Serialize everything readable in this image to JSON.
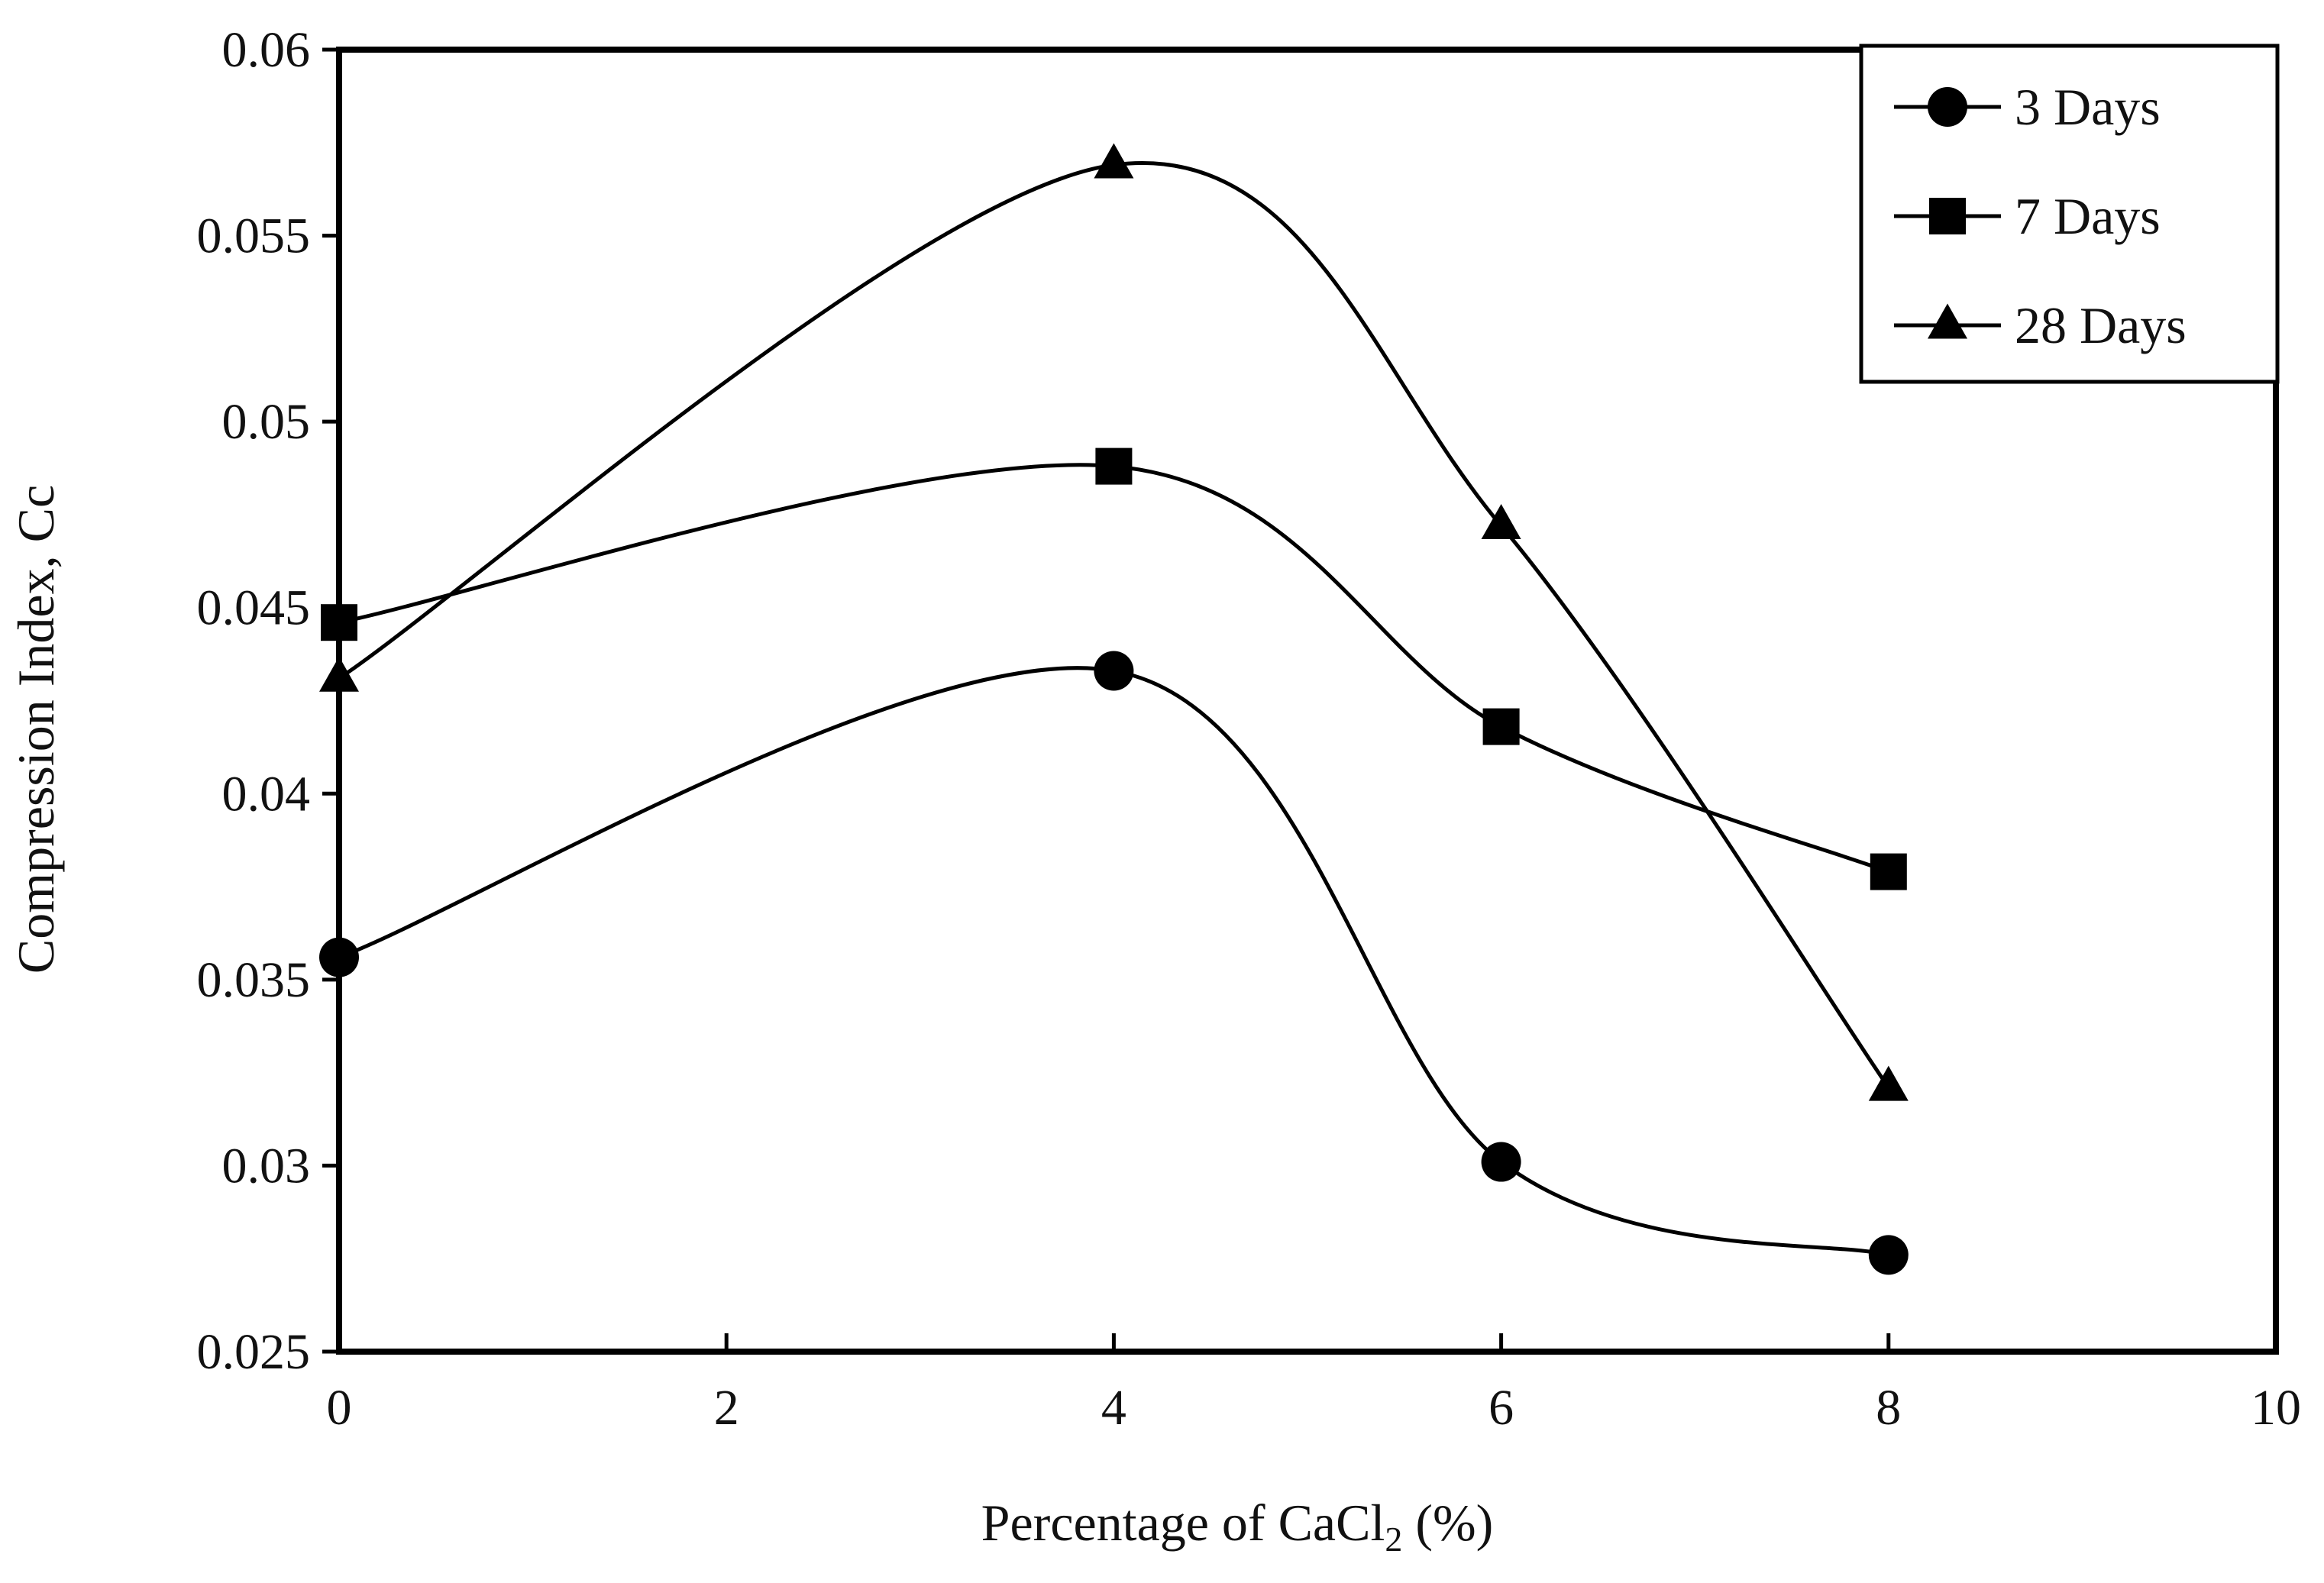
{
  "chart_data": {
    "type": "line",
    "title": "",
    "xlabel": "Percentage  of CaCl",
    "xlabel_sub": "2",
    "xlabel_suffix": " (%)",
    "ylabel": "Compression Index,  Cc",
    "xlim": [
      0,
      10
    ],
    "ylim": [
      0.025,
      0.06
    ],
    "x_ticks": [
      0,
      2,
      4,
      6,
      8,
      10
    ],
    "x_tick_labels": [
      "0",
      "2",
      "4",
      "6",
      "8",
      "10"
    ],
    "y_ticks": [
      0.025,
      0.03,
      0.035,
      0.04,
      0.045,
      0.05,
      0.055,
      0.06
    ],
    "y_tick_labels": [
      "0.025",
      "0.03",
      "0.035",
      "0.04",
      "0.045",
      "0.05",
      "0.055",
      "0.06"
    ],
    "grid": false,
    "smooth": true,
    "legend_position": "top-right",
    "series": [
      {
        "name": "3 Days",
        "marker": "circle",
        "color": "#000000",
        "x": [
          0,
          4,
          6,
          8
        ],
        "y": [
          0.0356,
          0.0433,
          0.0301,
          0.0276
        ]
      },
      {
        "name": "7 Days",
        "marker": "square",
        "color": "#000000",
        "x": [
          0,
          4,
          6,
          8
        ],
        "y": [
          0.0446,
          0.0488,
          0.0418,
          0.0379
        ]
      },
      {
        "name": "28 Days",
        "marker": "triangle",
        "color": "#000000",
        "x": [
          0,
          4,
          6,
          8
        ],
        "y": [
          0.0431,
          0.0569,
          0.0472,
          0.0321
        ]
      }
    ]
  }
}
